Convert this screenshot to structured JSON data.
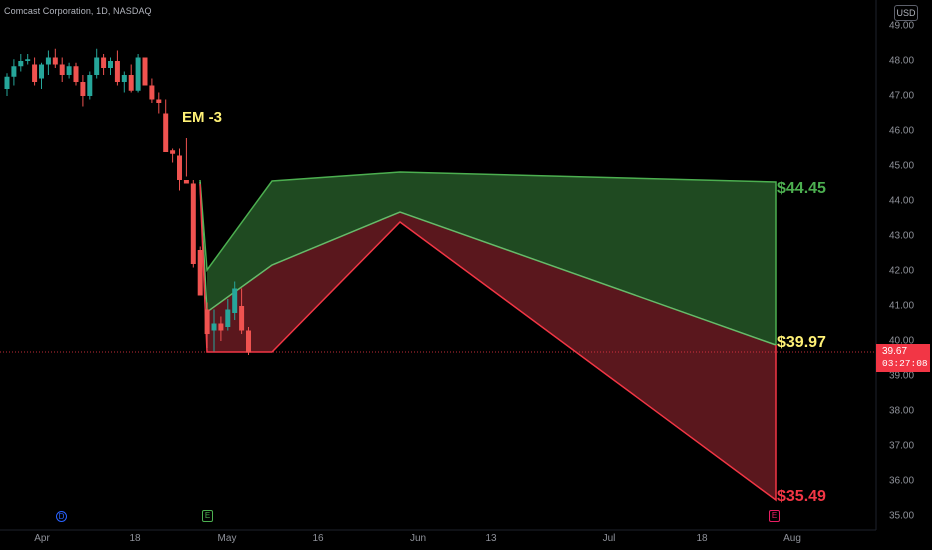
{
  "header": {
    "symbol_title": "Comcast Corporation, 1D, NASDAQ",
    "currency_button": "USD"
  },
  "price_axis": {
    "labels": [
      "49.00",
      "48.00",
      "47.00",
      "46.00",
      "45.00",
      "44.00",
      "43.00",
      "42.00",
      "41.00",
      "40.00",
      "39.00",
      "38.00",
      "37.00",
      "36.00",
      "35.00"
    ]
  },
  "time_axis": {
    "labels": [
      "Apr",
      "18",
      "May",
      "16",
      "Jun",
      "13",
      "Jul",
      "18",
      "Aug"
    ]
  },
  "last_price": {
    "price": "39.67",
    "countdown": "03:27:08",
    "color": "#f23645"
  },
  "annotations": {
    "em_label": "EM -3",
    "upper_target": "$44.45",
    "mid_target": "$39.97",
    "lower_target": "$35.49",
    "upper_color": "#4caf50",
    "mid_color": "#fff176",
    "lower_color": "#f23645"
  },
  "event_icons": {
    "dividend": "D",
    "earnings_past": "E",
    "earnings_next": "E"
  },
  "colors": {
    "up_candle": "#26a69a",
    "down_candle": "#ef5350",
    "bull_zone": "#1f4a21",
    "bear_zone": "#5a171d"
  },
  "chart_data": {
    "type": "candlestick",
    "title": "Comcast Corporation, 1D, NASDAQ",
    "ylim": [
      35.0,
      49.0
    ],
    "last_price": 39.67,
    "candles_ohlc": [
      [
        47.2,
        47.65,
        47.0,
        47.55
      ],
      [
        47.55,
        48.05,
        47.3,
        47.85
      ],
      [
        47.85,
        48.2,
        47.7,
        48.0
      ],
      [
        48.0,
        48.2,
        47.9,
        48.05
      ],
      [
        47.9,
        48.1,
        47.3,
        47.4
      ],
      [
        47.5,
        47.95,
        47.2,
        47.9
      ],
      [
        47.9,
        48.3,
        47.6,
        48.1
      ],
      [
        48.1,
        48.35,
        47.8,
        47.9
      ],
      [
        47.9,
        48.1,
        47.4,
        47.6
      ],
      [
        47.6,
        47.95,
        47.5,
        47.85
      ],
      [
        47.85,
        47.95,
        47.3,
        47.4
      ],
      [
        47.4,
        47.6,
        46.7,
        47.0
      ],
      [
        47.0,
        47.7,
        46.9,
        47.6
      ],
      [
        47.6,
        48.35,
        47.5,
        48.1
      ],
      [
        48.1,
        48.2,
        47.6,
        47.8
      ],
      [
        47.8,
        48.1,
        47.6,
        48.0
      ],
      [
        48.0,
        48.3,
        47.3,
        47.4
      ],
      [
        47.4,
        47.7,
        47.1,
        47.6
      ],
      [
        47.6,
        47.9,
        47.1,
        47.15
      ],
      [
        47.15,
        48.2,
        47.1,
        48.1
      ],
      [
        48.1,
        48.1,
        47.3,
        47.3
      ],
      [
        47.3,
        47.5,
        46.8,
        46.9
      ],
      [
        46.9,
        47.1,
        46.5,
        46.8
      ],
      [
        46.5,
        46.9,
        45.7,
        45.4
      ],
      [
        45.45,
        45.5,
        45.1,
        45.35
      ],
      [
        45.3,
        45.5,
        44.3,
        44.6
      ],
      [
        44.6,
        45.8,
        44.7,
        44.5
      ],
      [
        44.5,
        44.6,
        42.1,
        42.2
      ],
      [
        42.6,
        42.7,
        41.3,
        41.3
      ],
      [
        40.9,
        41.1,
        39.8,
        40.2
      ],
      [
        40.3,
        40.9,
        39.7,
        40.5
      ],
      [
        40.5,
        40.7,
        40.0,
        40.3
      ],
      [
        40.4,
        41.2,
        40.3,
        40.9
      ],
      [
        40.8,
        41.7,
        40.6,
        41.5
      ],
      [
        41.0,
        41.5,
        40.2,
        40.3
      ],
      [
        40.3,
        40.4,
        39.6,
        39.67
      ]
    ],
    "expected_move": {
      "label": "EM -3",
      "upper_target": 44.45,
      "mid_target": 39.97,
      "lower_target": 35.49
    },
    "x_tick_labels": [
      "Apr",
      "18",
      "May",
      "16",
      "Jun",
      "13",
      "Jul",
      "18",
      "Aug"
    ],
    "y_tick_labels": [
      "49.00",
      "48.00",
      "47.00",
      "46.00",
      "45.00",
      "44.00",
      "43.00",
      "42.00",
      "41.00",
      "40.00",
      "39.00",
      "38.00",
      "37.00",
      "36.00",
      "35.00"
    ]
  }
}
